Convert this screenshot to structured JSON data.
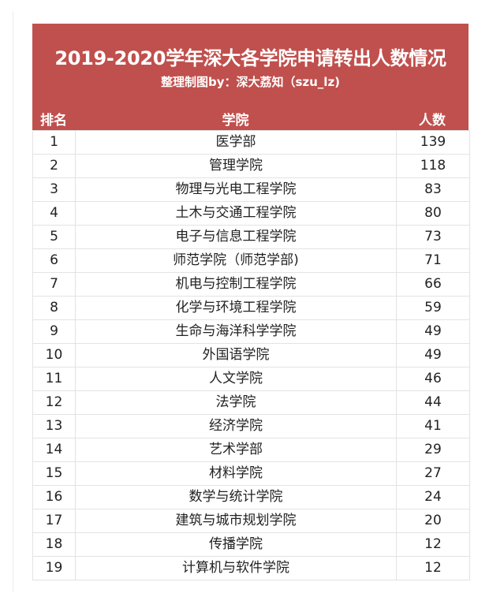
{
  "header": {
    "title": "2019-2020学年深大各学院申请转出人数情况",
    "subtitle": "整理制图by：深大荔知（szu_lz)",
    "background_color": "#C0504D"
  },
  "columns": {
    "rank": "排名",
    "college": "学院",
    "count": "人数"
  },
  "rows": [
    {
      "rank": "1",
      "college": "医学部",
      "count": "139"
    },
    {
      "rank": "2",
      "college": "管理学院",
      "count": "118"
    },
    {
      "rank": "3",
      "college": "物理与光电工程学院",
      "count": "83"
    },
    {
      "rank": "4",
      "college": "土木与交通工程学院",
      "count": "80"
    },
    {
      "rank": "5",
      "college": "电子与信息工程学院",
      "count": "73"
    },
    {
      "rank": "6",
      "college": "师范学院（师范学部)",
      "count": "71"
    },
    {
      "rank": "7",
      "college": "机电与控制工程学院",
      "count": "66"
    },
    {
      "rank": "8",
      "college": "化学与环境工程学院",
      "count": "59"
    },
    {
      "rank": "9",
      "college": "生命与海洋科学学院",
      "count": "49"
    },
    {
      "rank": "10",
      "college": "外国语学院",
      "count": "49"
    },
    {
      "rank": "11",
      "college": "人文学院",
      "count": "46"
    },
    {
      "rank": "12",
      "college": "法学院",
      "count": "44"
    },
    {
      "rank": "13",
      "college": "经济学院",
      "count": "41"
    },
    {
      "rank": "14",
      "college": "艺术学部",
      "count": "29"
    },
    {
      "rank": "15",
      "college": "材料学院",
      "count": "27"
    },
    {
      "rank": "16",
      "college": "数学与统计学院",
      "count": "24"
    },
    {
      "rank": "17",
      "college": "建筑与城市规划学院",
      "count": "20"
    },
    {
      "rank": "18",
      "college": "传播学院",
      "count": "12"
    },
    {
      "rank": "19",
      "college": "计算机与软件学院",
      "count": "12"
    }
  ]
}
